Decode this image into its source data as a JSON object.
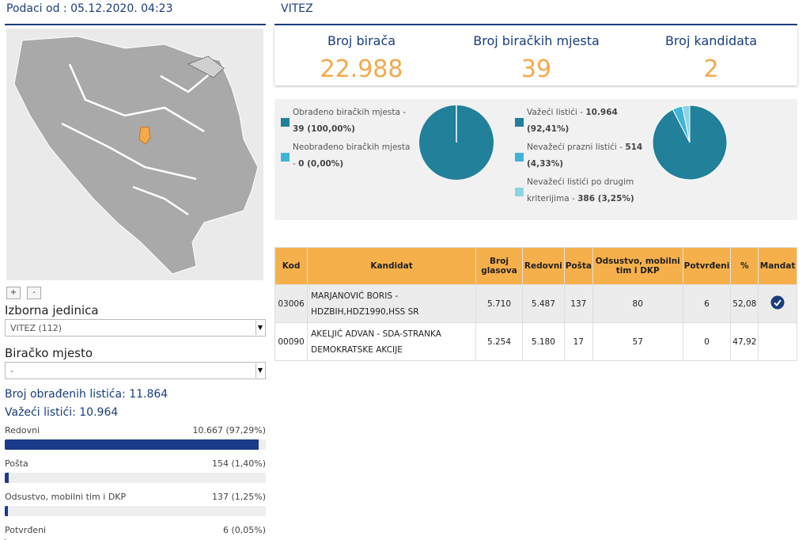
{
  "header": {
    "timestamp": "Podaci od : 05.12.2020. 04:23"
  },
  "map": {
    "zoom_in": "+",
    "zoom_out": "-"
  },
  "filters": [
    {
      "label": "Izborna jedinica",
      "value": "VITEZ (112)"
    },
    {
      "label": "Biračko mjesto",
      "value": "-"
    }
  ],
  "summary": {
    "processed": "Broj obrađenih listića: 11.864",
    "valid": "Važeći listići: 10.964"
  },
  "breakdown": [
    {
      "name": "Redovni",
      "label": "10.667 (97,29%)",
      "value": 97.29
    },
    {
      "name": "Pošta",
      "label": "154 (1,40%)",
      "value": 1.4
    },
    {
      "name": "Odsustvo, mobilni tim i DKP",
      "label": "137 (1,25%)",
      "value": 1.25
    },
    {
      "name": "Potvrđeni",
      "label": "6 (0,05%)",
      "value": 0.05
    }
  ],
  "unit": {
    "title": "VITEZ"
  },
  "stats": [
    {
      "label": "Broj birača",
      "value": "22.988"
    },
    {
      "label": "Broj biračkih mjesta",
      "value": "39"
    },
    {
      "label": "Broj kandidata",
      "value": "2"
    }
  ],
  "pies": [
    {
      "slices": [
        {
          "name": "Obrađeno biračkih mjesta -",
          "label": "39 (100,00%)",
          "value": 100,
          "color": "#21809a"
        },
        {
          "name": "Neobrađeno biračkih mjesta -",
          "label": "0 (0,00%)",
          "value": 0,
          "color": "#3fb4d6"
        }
      ]
    },
    {
      "slices": [
        {
          "name": "Važeći listići -",
          "label": "10.964 (92,41%)",
          "value": 92.41,
          "color": "#21809a"
        },
        {
          "name": "Nevažeći prazni listići -",
          "label": "514 (4,33%)",
          "value": 4.33,
          "color": "#3fb4d6"
        },
        {
          "name": "Nevažeći listići po drugim kriterijima -",
          "label": "386 (3,25%)",
          "value": 3.25,
          "color": "#8dd3e8"
        }
      ]
    }
  ],
  "table": {
    "columns": [
      "Kod",
      "Kandidat",
      "Broj glasova",
      "Redovni",
      "Pošta",
      "Odsustvo, mobilni tim i DKP",
      "Potvrđeni",
      "%",
      "Mandat"
    ],
    "rows": [
      {
        "cells": [
          "03006",
          "MARJANOVIĆ BORIS - HDZBIH,HDZ1990,HSS SR",
          "5.710",
          "5.487",
          "137",
          "80",
          "6",
          "52,08"
        ],
        "mandate": true
      },
      {
        "cells": [
          "00090",
          "AKELJIĆ ADVAN - SDA-STRANKA DEMOKRATSKE AKCIJE",
          "5.254",
          "5.180",
          "17",
          "57",
          "0",
          "47,92"
        ],
        "mandate": false
      }
    ]
  }
}
